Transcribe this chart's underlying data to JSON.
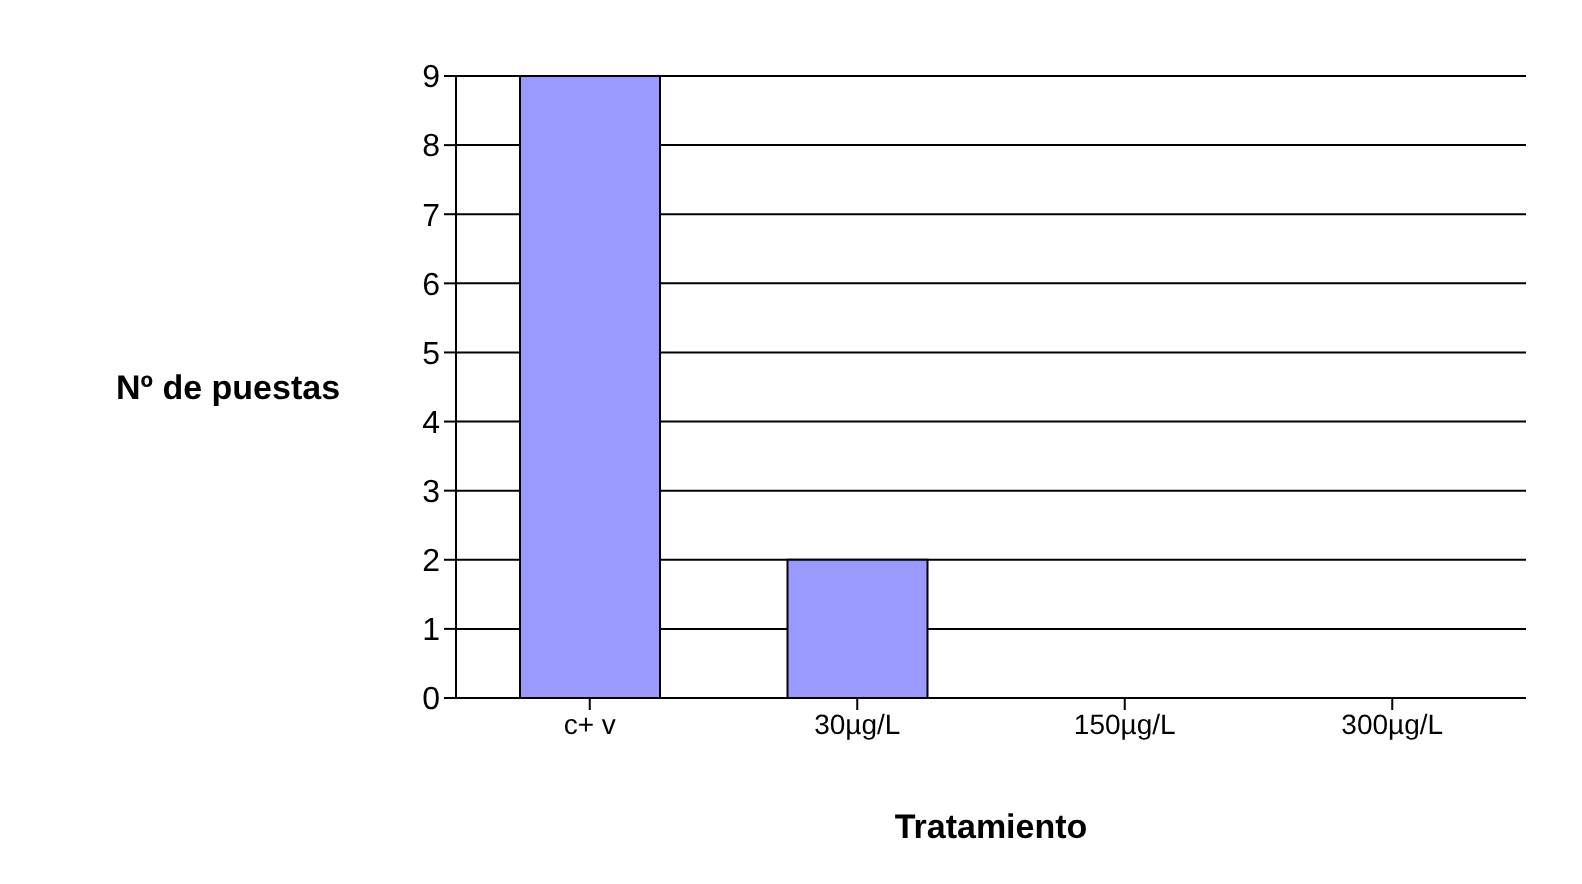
{
  "chart_data": {
    "type": "bar",
    "xlabel": "Tratamiento",
    "ylabel": "Nº de puestas",
    "categories": [
      "c+ v",
      "30µg/L",
      "150µg/L",
      "300µg/L"
    ],
    "values": [
      9,
      2,
      0,
      0
    ],
    "color": "#9999ff",
    "ylim": [
      0,
      9
    ],
    "yticks": [
      0,
      1,
      2,
      3,
      4,
      5,
      6,
      7,
      8,
      9
    ],
    "grid": "y",
    "legend": false
  }
}
